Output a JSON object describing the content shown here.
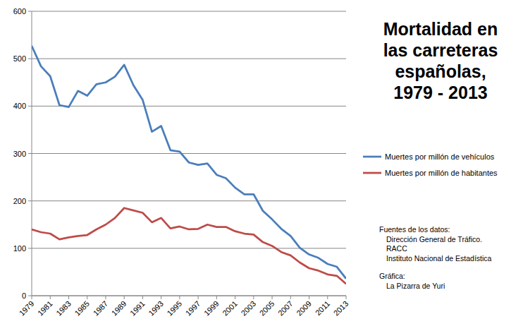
{
  "chart_data": {
    "type": "line",
    "title": "Mortalidad en\nlas carreteras\nespañolas,\n1979 - 2013",
    "x": [
      1979,
      1980,
      1981,
      1982,
      1983,
      1984,
      1985,
      1986,
      1987,
      1988,
      1989,
      1990,
      1991,
      1992,
      1993,
      1994,
      1995,
      1996,
      1997,
      1998,
      1999,
      2000,
      2001,
      2002,
      2003,
      2004,
      2005,
      2006,
      2007,
      2008,
      2009,
      2010,
      2011,
      2012,
      2013
    ],
    "series": [
      {
        "name": "Muertes por millón de vehículos",
        "color": "#4a7ebb",
        "values": [
          527,
          484,
          463,
          402,
          398,
          432,
          422,
          446,
          450,
          462,
          487,
          444,
          413,
          346,
          358,
          307,
          304,
          281,
          276,
          279,
          255,
          248,
          228,
          214,
          214,
          179,
          161,
          141,
          126,
          101,
          87,
          80,
          67,
          61,
          36
        ]
      },
      {
        "name": "Muertes por millón de habitantes",
        "color": "#be4b48",
        "values": [
          140,
          134,
          131,
          119,
          123,
          126,
          128,
          140,
          150,
          164,
          185,
          180,
          175,
          155,
          164,
          142,
          146,
          140,
          141,
          150,
          145,
          145,
          136,
          131,
          129,
          113,
          105,
          92,
          85,
          70,
          58,
          53,
          45,
          42,
          25
        ]
      }
    ],
    "xlim": [
      1979,
      2013
    ],
    "xticks": [
      1979,
      1981,
      1983,
      1985,
      1987,
      1989,
      1991,
      1993,
      1995,
      1997,
      1999,
      2001,
      2003,
      2005,
      2007,
      2009,
      2011,
      2013
    ],
    "ylim": [
      0,
      600
    ],
    "yticks": [
      0,
      100,
      200,
      300,
      400,
      500,
      600
    ],
    "grid": true,
    "legend": "right",
    "annotations": [
      {
        "heading": "Fuentes de los datos:",
        "lines": [
          "Dirección General de Tráfico.",
          "RACC",
          "Instituto Nacional de Estadística"
        ]
      },
      {
        "heading": "Gráfica:",
        "lines": [
          "La Pizarra de Yuri"
        ]
      }
    ]
  }
}
